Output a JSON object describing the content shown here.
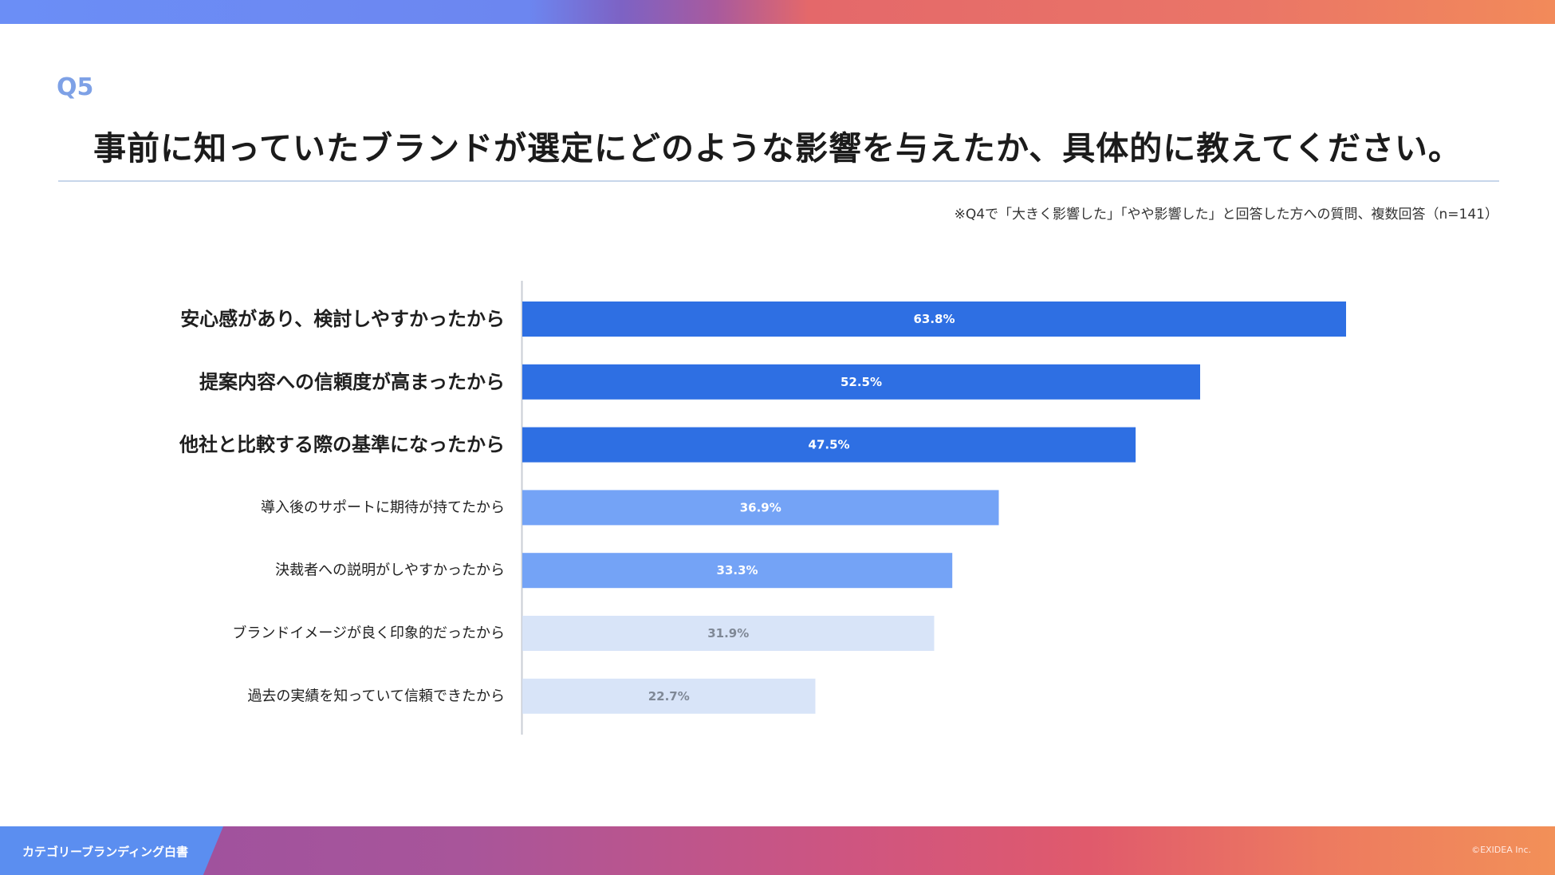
{
  "header": {
    "question_label": "Q5",
    "question_text": "事前に知っていたブランドが選定にどのような影響を与えたか、具体的に教えてください。",
    "note": "※Q4で「大きく影響した」「やや影響した」と回答した方への質問、複数回答（n=141）"
  },
  "footer": {
    "title": "カテゴリーブランディング白書",
    "copyright": "©EXIDEA Inc."
  },
  "colors": {
    "tier1": "#2e6fe3",
    "tier2": "#74a3f6",
    "tier3": "#d8e4f8",
    "label_light": "#ffffff",
    "label_dark": "#7f8896"
  },
  "chart_data": {
    "type": "bar",
    "orientation": "horizontal",
    "categories": [
      "安心感があり、検討しやすかったから",
      "提案内容への信頼度が高まったから",
      "他社と比較する際の基準になったから",
      "導入後のサポートに期待が持てたから",
      "決裁者への説明がしやすかったから",
      "ブランドイメージが良く印象的だったから",
      "過去の実績を知っていて信頼できたから"
    ],
    "values": [
      63.8,
      52.5,
      47.5,
      36.9,
      33.3,
      31.9,
      22.7
    ],
    "value_labels": [
      "63.8%",
      "52.5%",
      "47.5%",
      "36.9%",
      "33.3%",
      "31.9%",
      "22.7%"
    ],
    "tiers": [
      1,
      1,
      1,
      2,
      2,
      3,
      3
    ],
    "unit": "%",
    "xlim": [
      0,
      100
    ]
  }
}
